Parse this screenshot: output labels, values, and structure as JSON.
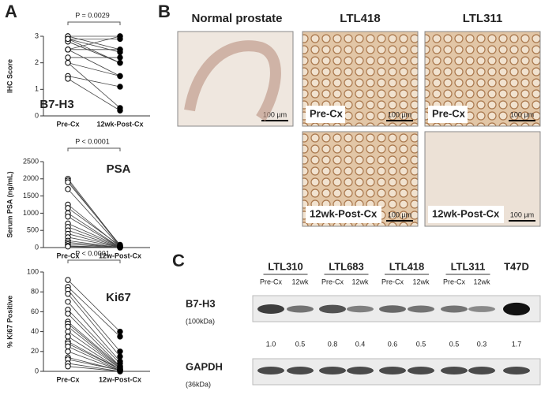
{
  "panel_labels": [
    "A",
    "B",
    "C"
  ],
  "chart_data": [
    {
      "type": "paired_dot",
      "ylabel": "IHC Score",
      "name": "B7-H3",
      "annotation": "P = 0.0029",
      "categories": [
        "Pre-Cx",
        "12wk-Post-Cx"
      ],
      "ylim": [
        0,
        3
      ],
      "yticks": [
        0,
        1,
        2,
        3
      ],
      "marker_fill": [
        "#ffffff",
        "#000000"
      ],
      "pairs": [
        [
          3,
          3
        ],
        [
          3,
          2.5
        ],
        [
          2.9,
          2.9
        ],
        [
          2.9,
          2.4
        ],
        [
          2.8,
          2.0
        ],
        [
          2.5,
          2.5
        ],
        [
          2.5,
          1.5
        ],
        [
          2.2,
          2.2
        ],
        [
          2.0,
          1.5
        ],
        [
          2.0,
          0.3
        ],
        [
          1.5,
          1.1
        ],
        [
          1.4,
          0.2
        ],
        [
          2.8,
          2.0
        ],
        [
          2.5,
          3
        ],
        [
          2.9,
          2.0
        ]
      ]
    },
    {
      "type": "paired_dot",
      "ylabel": "Serum PSA (ng/mL)",
      "name": "PSA",
      "annotation": "P < 0.0001",
      "categories": [
        "Pre-Cx",
        "12w-Post-Cx"
      ],
      "ylim": [
        0,
        2500
      ],
      "yticks": [
        0,
        500,
        1000,
        1500,
        2000,
        2500
      ],
      "marker_fill": [
        "#ffffff",
        "#000000"
      ],
      "pairs": [
        [
          2000,
          60
        ],
        [
          1950,
          40
        ],
        [
          1900,
          80
        ],
        [
          1700,
          30
        ],
        [
          1250,
          20
        ],
        [
          1150,
          50
        ],
        [
          1000,
          10
        ],
        [
          900,
          5
        ],
        [
          700,
          30
        ],
        [
          600,
          20
        ],
        [
          500,
          10
        ],
        [
          400,
          5
        ],
        [
          300,
          8
        ],
        [
          200,
          3
        ],
        [
          150,
          2
        ],
        [
          100,
          4
        ],
        [
          50,
          1
        ],
        [
          30,
          1
        ]
      ]
    },
    {
      "type": "paired_dot",
      "ylabel": "% Ki67 Positive",
      "name": "Ki67",
      "annotation": "P < 0.0001",
      "categories": [
        "Pre-Cx",
        "12w-Post-Cx"
      ],
      "ylim": [
        0,
        100
      ],
      "yticks": [
        0,
        20,
        40,
        60,
        80,
        100
      ],
      "marker_fill": [
        "#ffffff",
        "#000000"
      ],
      "pairs": [
        [
          92,
          40
        ],
        [
          85,
          35
        ],
        [
          82,
          20
        ],
        [
          78,
          15
        ],
        [
          70,
          10
        ],
        [
          62,
          8
        ],
        [
          58,
          5
        ],
        [
          50,
          5
        ],
        [
          48,
          4
        ],
        [
          45,
          3
        ],
        [
          40,
          3
        ],
        [
          35,
          2
        ],
        [
          30,
          2
        ],
        [
          28,
          2
        ],
        [
          25,
          1
        ],
        [
          20,
          1
        ],
        [
          14,
          1
        ],
        [
          12,
          1
        ],
        [
          8,
          0
        ],
        [
          5,
          0
        ]
      ]
    }
  ],
  "panel_b": {
    "titles": [
      "Normal prostate",
      "LTL418",
      "LTL311"
    ],
    "labels": [
      "Pre-Cx",
      "Pre-Cx",
      "12wk-Post-Cx",
      "12wk-Post-Cx"
    ],
    "scale_bar": "100 µm"
  },
  "panel_c": {
    "groups": [
      "LTL310",
      "LTL683",
      "LTL418",
      "LTL311",
      "T47D"
    ],
    "lane_labels": [
      "Pre-Cx",
      "12wk",
      "Pre-Cx",
      "12wk",
      "Pre-Cx",
      "12wk",
      "Pre-Cx",
      "12wk"
    ],
    "rows": [
      {
        "name": "B7-H3",
        "size": "(100kDa)"
      },
      {
        "name": "GAPDH",
        "size": "(36kDa)"
      }
    ],
    "ratios": {
      "values": [
        1.0,
        0.5,
        0.8,
        0.4,
        0.6,
        0.5,
        0.5,
        0.3,
        1.7
      ],
      "value_labels": [
        "1.0",
        "0.5",
        "0.8",
        "0.4",
        "0.6",
        "0.5",
        "0.5",
        "0.3",
        "1.7"
      ],
      "colors": [
        "#e0201b",
        "#1f77c4",
        "#e0201b",
        "#1f77c4",
        "#e0201b",
        "#1f77c4",
        "#e0201b",
        "#1f77c4",
        "#222222"
      ]
    }
  }
}
